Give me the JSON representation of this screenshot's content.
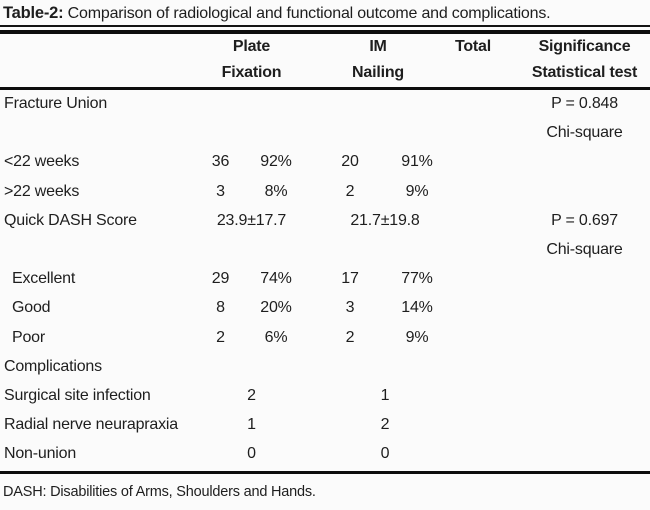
{
  "table": {
    "title_label": "Table-2:",
    "title_text": " Comparison of radiological and functional outcome and complications.",
    "columns": {
      "plate_line1": "Plate",
      "plate_line2": "Fixation",
      "im_line1": "IM",
      "im_line2": "Nailing",
      "total": "Total",
      "sig_line1": "Significance",
      "sig_line2": "Statistical test"
    },
    "rows": [
      {
        "label": "Fracture Union",
        "sig": "P = 0.848"
      },
      {
        "sig": "Chi-square"
      },
      {
        "label": "<22 weeks",
        "plate_n": "36",
        "plate_pct": "92%",
        "im_n": "20",
        "im_pct": "91%"
      },
      {
        "label": ">22 weeks",
        "plate_n": "3",
        "plate_pct": "8%",
        "im_n": "2",
        "im_pct": "9%"
      },
      {
        "label": "Quick DASH Score",
        "plate_span": "23.9±17.7",
        "im_span": "21.7±19.8",
        "sig": "P = 0.697"
      },
      {
        "sig": "Chi-square"
      },
      {
        "label": "Excellent",
        "plate_n": "29",
        "plate_pct": "74%",
        "im_n": "17",
        "im_pct": "77%"
      },
      {
        "label": "Good",
        "plate_n": "8",
        "plate_pct": "20%",
        "im_n": "3",
        "im_pct": "14%"
      },
      {
        "label": "Poor",
        "plate_n": "2",
        "plate_pct": "6%",
        "im_n": "2",
        "im_pct": "9%"
      },
      {
        "label": "Complications"
      },
      {
        "label": "Surgical site infection",
        "plate_span": "2",
        "im_span": "1"
      },
      {
        "label": "Radial nerve neurapraxia",
        "plate_span": "1",
        "im_span": "2"
      },
      {
        "label": "Non-union",
        "plate_span": "0",
        "im_span": "0"
      }
    ],
    "footnote": "DASH: Disabilities of Arms, Shoulders and Hands."
  },
  "colors": {
    "text": "#1e1e1e",
    "rule": "#0d0d0d",
    "background": "#fbfbfb"
  }
}
